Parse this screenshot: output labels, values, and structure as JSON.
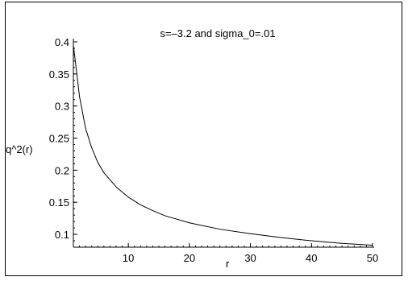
{
  "chart_data": {
    "type": "line",
    "title": "s=–3.2 and sigma_0=.01",
    "xlabel": "r",
    "ylabel": "q^2(r)",
    "xlim": [
      1,
      50
    ],
    "ylim": [
      0.08,
      0.4
    ],
    "x_ticks": [
      10,
      20,
      30,
      40,
      50
    ],
    "y_ticks": [
      0.1,
      0.15,
      0.2,
      0.25,
      0.3,
      0.35,
      0.4
    ],
    "y_tick_labels": [
      "0.1",
      "0.15",
      "0.2",
      "0.25",
      "0.3",
      "0.35",
      "0.4"
    ],
    "grid": false,
    "line_color": "#000000",
    "series": [
      {
        "x": [
          1,
          2,
          3,
          4,
          5,
          6,
          8,
          10,
          12,
          14,
          16,
          20,
          25,
          30,
          35,
          40,
          45,
          50
        ],
        "values": [
          0.395,
          0.315,
          0.265,
          0.235,
          0.212,
          0.196,
          0.174,
          0.158,
          0.146,
          0.137,
          0.129,
          0.118,
          0.108,
          0.101,
          0.095,
          0.09,
          0.086,
          0.083
        ]
      }
    ]
  }
}
